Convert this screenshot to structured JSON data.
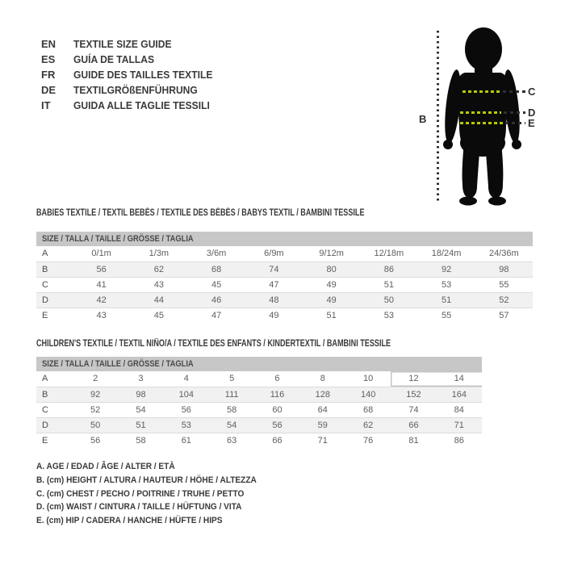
{
  "colors": {
    "measure_green": "#b9c900",
    "pointer_dark": "#2f2f2f",
    "silhouette": "#0a0a0a",
    "header_bar": "#c7c7c7",
    "zebra_row": "#f1f1f1"
  },
  "languages": [
    {
      "code": "EN",
      "title": "TEXTILE SIZE GUIDE"
    },
    {
      "code": "ES",
      "title": "GUÍA DE TALLAS"
    },
    {
      "code": "FR",
      "title": "GUIDE DES TAILLES TEXTILE"
    },
    {
      "code": "DE",
      "title": "TEXTILGRÖßENFÜHRUNG"
    },
    {
      "code": "IT",
      "title": "GUIDA ALLE TAGLIE TESSILI"
    }
  ],
  "figure": {
    "label_b": "B",
    "label_c": "C",
    "label_d": "D",
    "label_e": "E"
  },
  "babies": {
    "caption": "BABIES TEXTILE / TEXTIL BEBÉS / TEXTILE DES BÉBÉS / BABYS TEXTIL  / BAMBINI TESSILE",
    "size_header": "SIZE / TALLA / TAILLE / GRÖSSE / TAGLIA",
    "rows": [
      {
        "label": "A",
        "values": [
          "0/1m",
          "1/3m",
          "3/6m",
          "6/9m",
          "9/12m",
          "12/18m",
          "18/24m",
          "24/36m"
        ]
      },
      {
        "label": "B",
        "values": [
          "56",
          "62",
          "68",
          "74",
          "80",
          "86",
          "92",
          "98"
        ]
      },
      {
        "label": "C",
        "values": [
          "41",
          "43",
          "45",
          "47",
          "49",
          "51",
          "53",
          "55"
        ]
      },
      {
        "label": "D",
        "values": [
          "42",
          "44",
          "46",
          "48",
          "49",
          "50",
          "51",
          "52"
        ]
      },
      {
        "label": "E",
        "values": [
          "43",
          "45",
          "47",
          "49",
          "51",
          "53",
          "55",
          "57"
        ]
      }
    ]
  },
  "children": {
    "caption": "CHILDREN'S TEXTILE / TEXTIL NIÑO/A / TEXTILE DES ENFANTS / KINDERTEXTIL / BAMBINI TESSILE",
    "size_header": "SIZE / TALLA / TAILLE / GRÖSSE / TAGLIA",
    "highlight_row": 0,
    "highlight_from_index": 7,
    "rows": [
      {
        "label": "A",
        "values": [
          "2",
          "3",
          "4",
          "5",
          "6",
          "8",
          "10",
          "12",
          "14"
        ]
      },
      {
        "label": "B",
        "values": [
          "92",
          "98",
          "104",
          "111",
          "116",
          "128",
          "140",
          "152",
          "164"
        ]
      },
      {
        "label": "C",
        "values": [
          "52",
          "54",
          "56",
          "58",
          "60",
          "64",
          "68",
          "74",
          "84"
        ]
      },
      {
        "label": "D",
        "values": [
          "50",
          "51",
          "53",
          "54",
          "56",
          "59",
          "62",
          "66",
          "71"
        ]
      },
      {
        "label": "E",
        "values": [
          "56",
          "58",
          "61",
          "63",
          "66",
          "71",
          "76",
          "81",
          "86"
        ]
      }
    ]
  },
  "legend": {
    "items": [
      "A. AGE / EDAD / ÂGE / ALTER / ETÀ",
      "B. (cm) HEIGHT / ALTURA / HAUTEUR / HÖHE / ALTEZZA",
      "C. (cm) CHEST / PECHO / POITRINE / TRUHE / PETTO",
      "D. (cm) WAIST / CINTURA / TAILLE / HÜFTUNG / VITA",
      "E. (cm) HIP / CADERA / HANCHE / HÜFTE / HIPS"
    ]
  }
}
